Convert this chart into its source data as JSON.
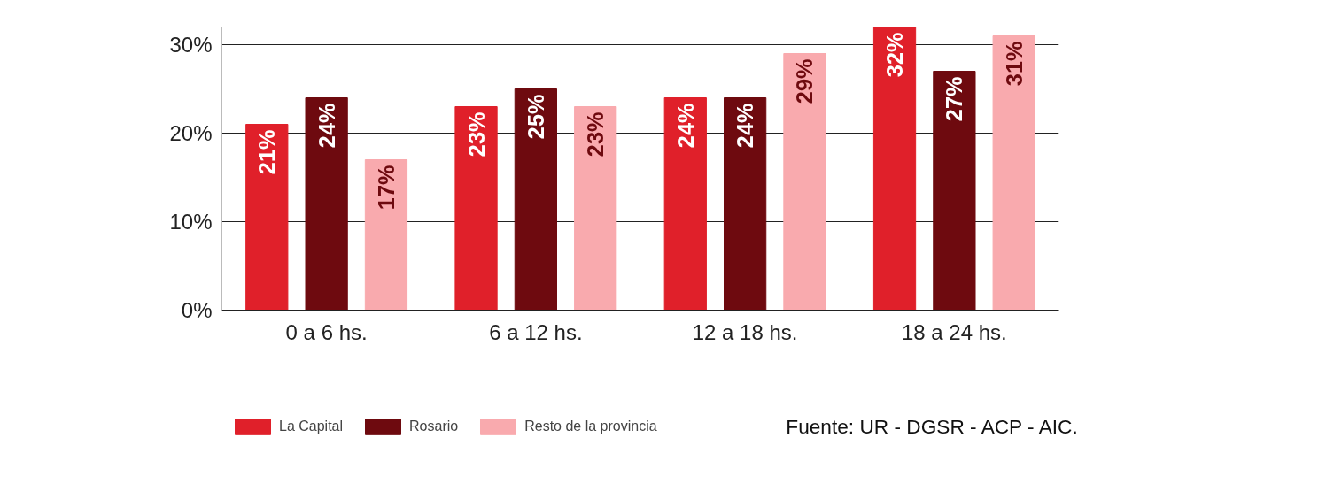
{
  "chart_data": {
    "type": "bar",
    "categories": [
      "0 a 6 hs.",
      "6 a 12 hs.",
      "12 a 18 hs.",
      "18 a 24 hs."
    ],
    "series": [
      {
        "name": "La Capital",
        "color": "#e0202a",
        "values": [
          21,
          23,
          24,
          32
        ],
        "value_labels": [
          "21%",
          "23%",
          "24%",
          "32%"
        ]
      },
      {
        "name": "Rosario",
        "color": "#6e0a0f",
        "values": [
          24,
          25,
          24,
          27
        ],
        "value_labels": [
          "24%",
          "25%",
          "24%",
          "27%"
        ]
      },
      {
        "name": "Resto de la provincia",
        "color": "#f9aaae",
        "values": [
          17,
          23,
          29,
          31
        ],
        "value_labels": [
          "17%",
          "23%",
          "29%",
          "31%"
        ]
      }
    ],
    "ylim": [
      0,
      32
    ],
    "yticks": [
      {
        "value": 0,
        "label": "0%"
      },
      {
        "value": 10,
        "label": "10%"
      },
      {
        "value": 20,
        "label": "20%"
      },
      {
        "value": 30,
        "label": "30%"
      }
    ],
    "grid": "y",
    "legend": "bottom left",
    "annotations": [
      "Fuente: UR - DGSR - ACP - AIC."
    ]
  }
}
